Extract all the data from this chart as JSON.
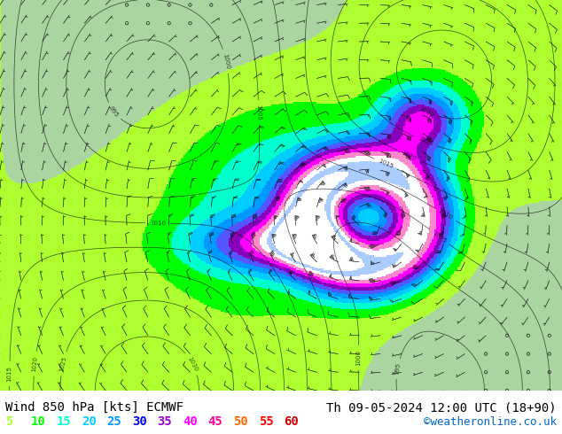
{
  "title_left": "Wind 850 hPa [kts] ECMWF",
  "title_right": "Th 09-05-2024 12:00 UTC (18+90)",
  "credit": "©weatheronline.co.uk",
  "legend_values": [
    5,
    10,
    15,
    20,
    25,
    30,
    35,
    40,
    45,
    50,
    55,
    60
  ],
  "legend_colors": [
    "#adff2f",
    "#00ff00",
    "#00ffcc",
    "#00ccff",
    "#0099ff",
    "#0000ff",
    "#9900cc",
    "#ff00ff",
    "#ff0099",
    "#ff6600",
    "#ff0000",
    "#cc0000"
  ],
  "bg_color": "#ffffff",
  "map_bg_color": "#aad4a0",
  "bottom_bar_color": "#ffffff",
  "text_color": "#000000",
  "credit_color": "#0066cc",
  "title_fontsize": 10,
  "legend_fontsize": 10,
  "credit_fontsize": 9,
  "fig_width": 6.34,
  "fig_height": 4.9,
  "dpi": 100
}
